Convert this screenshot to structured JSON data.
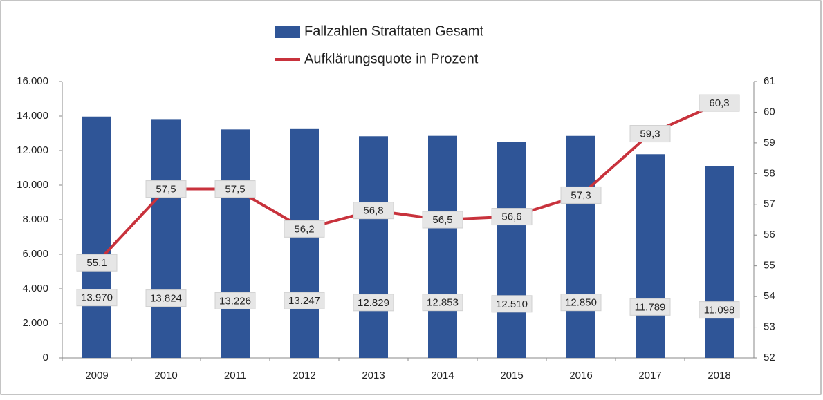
{
  "chart_data": {
    "type": "bar",
    "categories": [
      "2009",
      "2010",
      "2011",
      "2012",
      "2013",
      "2014",
      "2015",
      "2016",
      "2017",
      "2018"
    ],
    "series": [
      {
        "name": "Fallzahlen Straftaten Gesamt",
        "color": "#2f5597",
        "type": "bar",
        "values": [
          13970,
          13824,
          13226,
          13247,
          12829,
          12853,
          12510,
          12850,
          11789,
          11098
        ],
        "value_labels": [
          "13.970",
          "13.824",
          "13.226",
          "13.247",
          "12.829",
          "12.853",
          "12.510",
          "12.850",
          "11.789",
          "11.098"
        ]
      },
      {
        "name": "Aufklärungsquote in Prozent",
        "color": "#c8323c",
        "type": "line",
        "axis": "y2",
        "values": [
          55.1,
          57.5,
          57.5,
          56.2,
          56.8,
          56.5,
          56.6,
          57.3,
          59.3,
          60.3
        ],
        "value_labels": [
          "55,1",
          "57,5",
          "57,5",
          "56,2",
          "56,8",
          "56,5",
          "56,6",
          "57,3",
          "59,3",
          "60,3"
        ]
      }
    ],
    "ylim": [
      0,
      16000
    ],
    "yticks": [
      0,
      {
        "value": 2000,
        "label": "2.000"
      },
      {
        "value": 4000,
        "label": "4.000"
      },
      {
        "value": 6000,
        "label": "6.000"
      },
      {
        "value": 8000,
        "label": "8.000"
      },
      {
        "value": 10000,
        "label": "10.000"
      },
      {
        "value": 12000,
        "label": "12.000"
      },
      {
        "value": 14000,
        "label": "14.000"
      },
      {
        "value": 16000,
        "label": "16.000"
      }
    ],
    "y2lim": [
      52,
      61
    ],
    "y2ticks": [
      52,
      53,
      54,
      55,
      56,
      57,
      58,
      59,
      60,
      61
    ],
    "grid": false,
    "legend": "top"
  }
}
